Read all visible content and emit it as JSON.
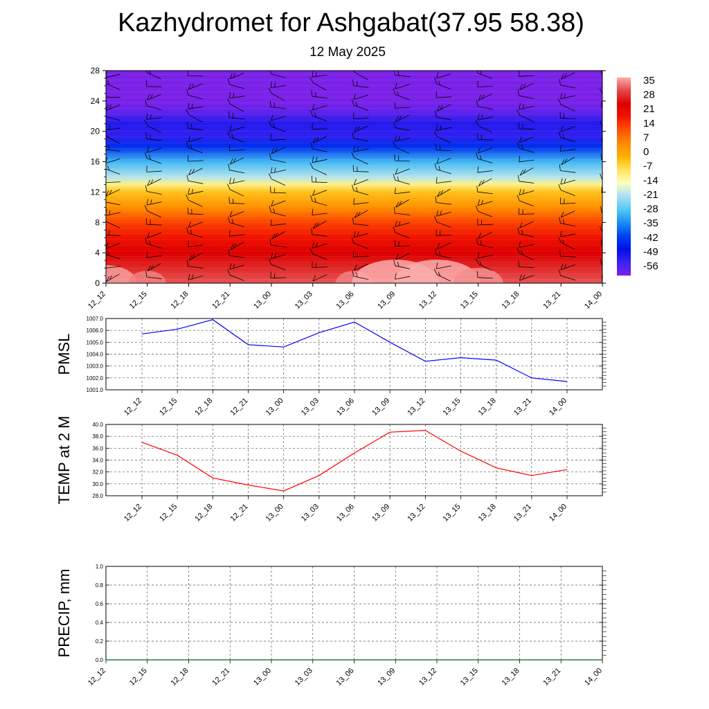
{
  "header": {
    "title": "Kazhydromet for Ashgabat(37.95 58.38)",
    "subtitle": "12 May 2025"
  },
  "chart_data": [
    {
      "type": "heatmap",
      "title": "",
      "xlabel": "",
      "ylabel": "",
      "x_tick_labels": [
        "12_12",
        "12_15",
        "12_18",
        "12_21",
        "13_00",
        "13_03",
        "13_06",
        "13_09",
        "13_12",
        "13_15",
        "13_18",
        "13_21",
        "14_00"
      ],
      "y_ticks": [
        0,
        4,
        8,
        12,
        16,
        20,
        24,
        28
      ],
      "ylim": [
        0,
        28
      ],
      "colorbar_labels": [
        "35",
        "28",
        "21",
        "14",
        "7",
        "0",
        "-7",
        "-14",
        "-21",
        "-28",
        "-35",
        "-42",
        "-49",
        "-56"
      ],
      "colorbar_range": [
        -63,
        42
      ],
      "colors": {
        "colormap": [
          "#7b22e8",
          "#3a22f0",
          "#0010e8",
          "#0044f0",
          "#1a8ef5",
          "#52c8f2",
          "#a8e0f5",
          "#fdfec0",
          "#ffe55c",
          "#ffb200",
          "#ff8a00",
          "#ff5400",
          "#f21500",
          "#dd0000",
          "#e44646",
          "#fbaaaa"
        ]
      },
      "surface_temperature_by_time": [
        37,
        35,
        31,
        30,
        29,
        31,
        35,
        39,
        39,
        36,
        33,
        31,
        32
      ],
      "wind_barbs": true
    },
    {
      "type": "line",
      "ylabel": "PMSL",
      "x": [
        "12_12",
        "12_15",
        "12_18",
        "12_21",
        "13_00",
        "13_03",
        "13_06",
        "13_09",
        "13_12",
        "13_15",
        "13_18",
        "13_21",
        "14_00"
      ],
      "series": [
        {
          "values": [
            1005.7,
            1006.1,
            1006.9,
            1004.8,
            1004.6,
            1005.8,
            1006.7,
            1005.0,
            1003.4,
            1003.7,
            1003.5,
            1002.0,
            1001.7
          ],
          "color": "#0000ff"
        }
      ],
      "ylim": [
        1001.0,
        1007.0
      ],
      "y_tick_labels": [
        "1007.0",
        "1006.0",
        "1005.0",
        "1004.0",
        "1003.0",
        "1002.0",
        "1001.0"
      ],
      "grid": true
    },
    {
      "type": "line",
      "ylabel": "TEMP at 2 M",
      "x": [
        "12_12",
        "12_15",
        "12_18",
        "12_21",
        "13_00",
        "13_03",
        "13_06",
        "13_09",
        "13_12",
        "13_15",
        "13_18",
        "13_21",
        "14_00"
      ],
      "series": [
        {
          "values": [
            37.0,
            34.8,
            31.0,
            29.8,
            28.8,
            31.4,
            35.2,
            38.7,
            39.0,
            35.5,
            32.7,
            31.4,
            32.4
          ],
          "color": "#ff0000"
        }
      ],
      "ylim": [
        28.0,
        40.0
      ],
      "y_tick_labels": [
        "40.0",
        "38.0",
        "36.0",
        "34.0",
        "32.0",
        "30.0",
        "28.0"
      ],
      "grid": true
    },
    {
      "type": "line",
      "ylabel": "PRECIP, mm",
      "x": [
        "12_12",
        "12_15",
        "12_18",
        "12_21",
        "13_00",
        "13_03",
        "13_06",
        "13_09",
        "13_12",
        "13_15",
        "13_18",
        "13_21",
        "14_00"
      ],
      "series": [
        {
          "values": [
            0,
            0,
            0,
            0,
            0,
            0,
            0,
            0,
            0,
            0,
            0,
            0,
            0
          ],
          "color": "#006400"
        }
      ],
      "ylim": [
        0.0,
        1.0
      ],
      "y_tick_labels": [
        "1.0",
        "0.8",
        "0.6",
        "0.4",
        "0.2",
        "0.0"
      ],
      "grid": true
    }
  ]
}
